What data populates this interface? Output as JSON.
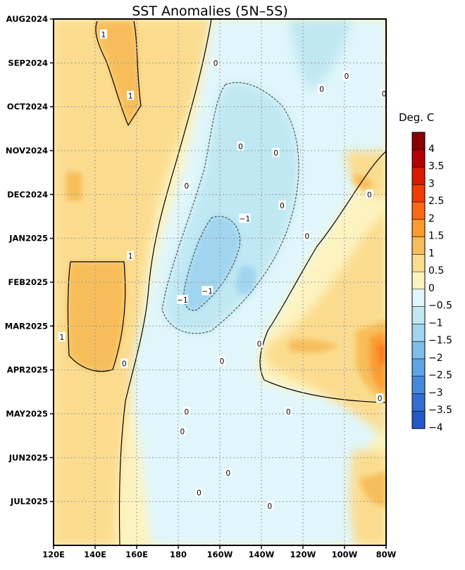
{
  "chart_data": {
    "type": "heatmap",
    "title": "SST Anomalies (5N–5S)",
    "units": "Deg. C",
    "x_axis": {
      "ticks": [
        "120E",
        "140E",
        "160E",
        "180",
        "160W",
        "140W",
        "120W",
        "100W",
        "80W"
      ],
      "lon_east": [
        120,
        140,
        160,
        180,
        200,
        220,
        240,
        260,
        280
      ],
      "range": [
        120,
        280
      ]
    },
    "y_axis": {
      "ticks": [
        "AUG2024",
        "SEP2024",
        "OCT2024",
        "NOV2024",
        "DEC2024",
        "JAN2025",
        "FEB2025",
        "MAR2025",
        "APR2025",
        "MAY2025",
        "JUN2025",
        "JUL2025"
      ],
      "range": [
        "2024-08-01",
        "2025-08-01"
      ],
      "direction": "time increases downward"
    },
    "colorbar": {
      "labels": [
        "4",
        "3.5",
        "3",
        "2.5",
        "2",
        "1.5",
        "1",
        "0.5",
        "0",
        "−0.5",
        "−1",
        "−1.5",
        "−2",
        "−2.5",
        "−3",
        "−3.5",
        "−4"
      ],
      "colors": [
        "#8a0000",
        "#b40000",
        "#d91a00",
        "#f03c00",
        "#fa6a14",
        "#fc9a2e",
        "#f7bd5a",
        "#fbdc8f",
        "#fdf3c0",
        "#e0f6fb",
        "#bfe8f3",
        "#a0d4ef",
        "#7ebdea",
        "#5ea3e4",
        "#4688dc",
        "#336fd3",
        "#2457c9"
      ]
    },
    "grid": "dotted",
    "contour_labels": [
      {
        "text": "1",
        "lon": 144,
        "month": 0.35
      },
      {
        "text": "1",
        "lon": 157,
        "month": 1.75
      },
      {
        "text": "0",
        "lon": 184,
        "month": 3.8
      },
      {
        "text": "0",
        "lon": 198,
        "month": 1.0
      },
      {
        "text": "0",
        "lon": 227,
        "month": 3.05
      },
      {
        "text": "0",
        "lon": 210,
        "month": 2.9
      },
      {
        "text": "0",
        "lon": 249,
        "month": 1.6
      },
      {
        "text": "0",
        "lon": 261,
        "month": 1.3
      },
      {
        "text": "0",
        "lon": 279,
        "month": 1.7
      },
      {
        "text": "0",
        "lon": 272,
        "month": 4.0
      },
      {
        "text": "0",
        "lon": 230,
        "month": 4.25
      },
      {
        "text": "0",
        "lon": 242,
        "month": 4.95
      },
      {
        "text": "−1",
        "lon": 212,
        "month": 4.55
      },
      {
        "text": "1",
        "lon": 157,
        "month": 5.4
      },
      {
        "text": "−1",
        "lon": 194,
        "month": 6.2
      },
      {
        "text": "−1",
        "lon": 182,
        "month": 6.4
      },
      {
        "text": "1",
        "lon": 124,
        "month": 7.25
      },
      {
        "text": "0",
        "lon": 219,
        "month": 7.4
      },
      {
        "text": "0",
        "lon": 154,
        "month": 7.85
      },
      {
        "text": "0",
        "lon": 201,
        "month": 7.8
      },
      {
        "text": "0",
        "lon": 184,
        "month": 8.95
      },
      {
        "text": "0",
        "lon": 182,
        "month": 9.4
      },
      {
        "text": "0",
        "lon": 233,
        "month": 8.95
      },
      {
        "text": "0",
        "lon": 277,
        "month": 8.65
      },
      {
        "text": "0",
        "lon": 204,
        "month": 10.35
      },
      {
        "text": "0",
        "lon": 190,
        "month": 10.8
      },
      {
        "text": "0",
        "lon": 224,
        "month": 11.1
      }
    ]
  }
}
